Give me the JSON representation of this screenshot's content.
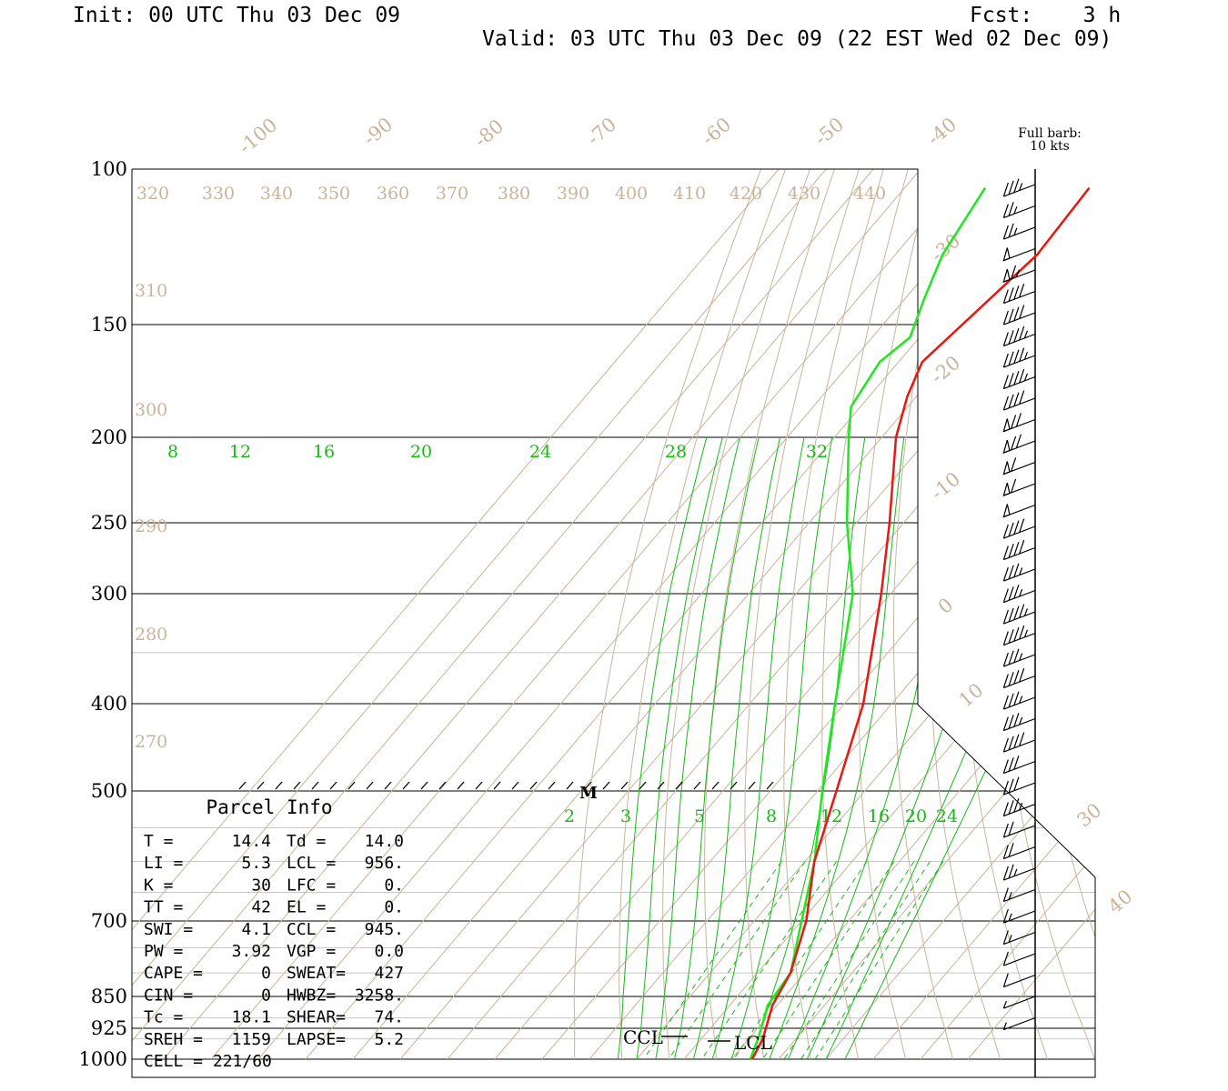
{
  "header": {
    "init": "Init: 00 UTC Thu 03 Dec 09",
    "fcst": "Fcst:    3 h",
    "valid": "Valid: 03 UTC Thu 03 Dec 09 (22 EST Wed 02 Dec 09)"
  },
  "barb_note": [
    "Full barb:",
    "10 kts"
  ],
  "colors": {
    "temperature": "#e8170f",
    "dewpoint": "#1ee81e",
    "isotherm": "#c8b49a",
    "mixing_ratio": "#18b818",
    "frame": "#000000"
  },
  "chart_data": {
    "type": "skew-t",
    "pressure_levels": [
      "100",
      "150",
      "200",
      "250",
      "300",
      "400",
      "500",
      "700",
      "850",
      "925",
      "1000"
    ],
    "isotherm_labels": [
      "-100",
      "-90",
      "-80",
      "-70",
      "-60",
      "-50",
      "-40",
      "-30",
      "-20",
      "-10",
      "0",
      "10",
      "30",
      "40"
    ],
    "theta_top_labels": [
      "320",
      "330",
      "340",
      "350",
      "360",
      "370",
      "380",
      "390",
      "400",
      "410",
      "420",
      "430",
      "440"
    ],
    "theta_left_labels": [
      "310",
      "300",
      "290",
      "280",
      "270"
    ],
    "mixing_ratio_upper_labels": [
      "8",
      "12",
      "16",
      "20",
      "24",
      "28",
      "32"
    ],
    "mixing_ratio_lower_labels": [
      "2",
      "3",
      "5",
      "8",
      "12",
      "16",
      "20",
      "24"
    ],
    "temperature_profile": [
      {
        "p": 105,
        "t": -71
      },
      {
        "p": 125,
        "t": -70
      },
      {
        "p": 140,
        "t": -72
      },
      {
        "p": 165,
        "t": -75
      },
      {
        "p": 180,
        "t": -72
      },
      {
        "p": 200,
        "t": -67
      },
      {
        "p": 250,
        "t": -53
      },
      {
        "p": 300,
        "t": -42
      },
      {
        "p": 400,
        "t": -26
      },
      {
        "p": 500,
        "t": -16
      },
      {
        "p": 600,
        "t": -8
      },
      {
        "p": 700,
        "t": 1
      },
      {
        "p": 800,
        "t": 7
      },
      {
        "p": 870,
        "t": 9
      },
      {
        "p": 950,
        "t": 13
      },
      {
        "p": 1000,
        "t": 14.4
      }
    ],
    "dewpoint_profile": [
      {
        "p": 105,
        "t": -93
      },
      {
        "p": 125,
        "t": -90
      },
      {
        "p": 140,
        "t": -86
      },
      {
        "p": 155,
        "t": -82
      },
      {
        "p": 165,
        "t": -84
      },
      {
        "p": 185,
        "t": -82
      },
      {
        "p": 200,
        "t": -77
      },
      {
        "p": 250,
        "t": -62
      },
      {
        "p": 300,
        "t": -48
      },
      {
        "p": 400,
        "t": -32
      },
      {
        "p": 500,
        "t": -19
      },
      {
        "p": 600,
        "t": -8
      },
      {
        "p": 700,
        "t": 0
      },
      {
        "p": 800,
        "t": 7
      },
      {
        "p": 870,
        "t": 8
      },
      {
        "p": 950,
        "t": 12
      },
      {
        "p": 1000,
        "t": 14.0
      }
    ],
    "markers": {
      "m": "M",
      "ccl": "CCL",
      "lcl": "LCL"
    },
    "wind_barbs_knots": [
      35,
      25,
      25,
      50,
      65,
      40,
      40,
      45,
      45,
      45,
      40,
      70,
      70,
      60,
      60,
      50,
      40,
      40,
      35,
      35,
      45,
      45,
      35,
      40,
      35,
      35,
      40,
      30,
      30,
      35,
      20,
      20,
      25,
      15,
      15,
      15,
      10,
      10,
      5,
      5
    ]
  },
  "parcel_info": {
    "title": "Parcel Info",
    "rows": [
      {
        "l": "T  =",
        "v1": "14.4",
        "k2": "Td =",
        "v2": "14.0"
      },
      {
        "l": "LI =",
        "v1": "5.3",
        "k2": "LCL =",
        "v2": "956."
      },
      {
        "l": "K  =",
        "v1": "30",
        "k2": "LFC =",
        "v2": "0."
      },
      {
        "l": "TT =",
        "v1": "42",
        "k2": "EL  =",
        "v2": "0."
      },
      {
        "l": "SWI =",
        "v1": "4.1",
        "k2": "CCL =",
        "v2": "945."
      },
      {
        "l": "PW =",
        "v1": "3.92",
        "k2": "VGP =",
        "v2": "0.0"
      },
      {
        "l": "CAPE =",
        "v1": "0",
        "k2": "SWEAT=",
        "v2": "427"
      },
      {
        "l": "CIN =",
        "v1": "0",
        "k2": "HWBZ=",
        "v2": "3258."
      },
      {
        "l": "Tc =",
        "v1": "18.1",
        "k2": "SHEAR=",
        "v2": "74."
      },
      {
        "l": "SREH =",
        "v1": "1159",
        "k2": "LAPSE=",
        "v2": "5.2"
      },
      {
        "l": "CELL = 221/60",
        "v1": "",
        "k2": "",
        "v2": ""
      }
    ]
  }
}
